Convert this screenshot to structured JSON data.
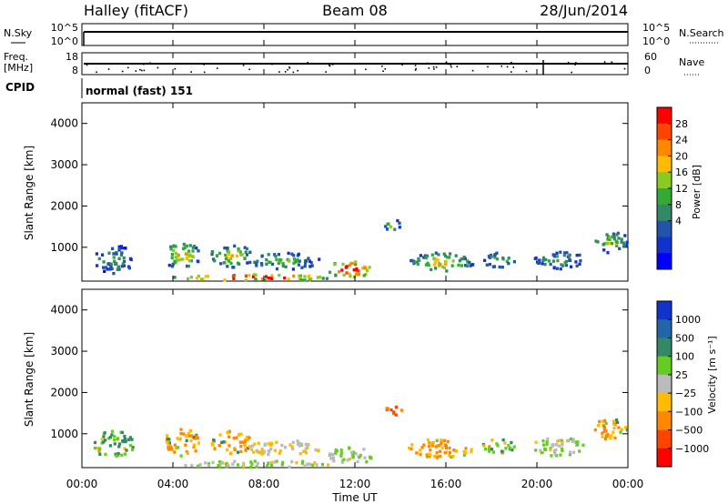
{
  "header": {
    "station": "Halley (fitACF)",
    "beam": "Beam 08",
    "date": "28/Jun/2014"
  },
  "noise_panel": {
    "left_label": "N.Sky",
    "right_label": "N.Search",
    "left_ticks": [
      "10^5",
      "10^0"
    ],
    "right_ticks": [
      "10^5",
      "10^0"
    ]
  },
  "freq_panel": {
    "left_label_line1": "Freq.",
    "left_label_line2": "[MHz]",
    "right_label": "Nave",
    "left_ticks": [
      "18",
      "8"
    ],
    "right_ticks": [
      "60",
      "0"
    ]
  },
  "cpid": {
    "label": "CPID",
    "mode_text": "normal (fast) 151"
  },
  "axes": {
    "ylabel": "Slant Range [km]",
    "xlabel": "Time UT",
    "yticks": [
      "1000",
      "2000",
      "3000",
      "4000"
    ],
    "xticks": [
      "00:00",
      "04:00",
      "08:00",
      "12:00",
      "16:00",
      "20:00",
      "00:00"
    ]
  },
  "power_colorbar": {
    "label": "Power [dB]",
    "ticks": [
      "28",
      "24",
      "20",
      "16",
      "12",
      "8",
      "4"
    ],
    "colors": [
      "#ff0000",
      "#ff4400",
      "#ff8800",
      "#ffbb00",
      "#88cc22",
      "#33aa33",
      "#338866",
      "#2255aa",
      "#1133cc",
      "#0000ff"
    ]
  },
  "velocity_colorbar": {
    "label": "Velocity [m s⁻¹]",
    "ticks": [
      "1000",
      "500",
      "100",
      "25",
      "−25",
      "−100",
      "−500",
      "−1000"
    ],
    "colors": [
      "#1133cc",
      "#2266aa",
      "#338866",
      "#66cc22",
      "#bbbbbb",
      "#ffbb00",
      "#ff8800",
      "#ff4400",
      "#ff0000"
    ]
  },
  "chart_data": {
    "type": "heatmap",
    "title": "Halley (fitACF) Beam 08 28/Jun/2014",
    "xlabel": "Time UT",
    "ylabel": "Slant Range [km]",
    "xlim_hours": [
      0,
      24
    ],
    "ylim_km": [
      180,
      4500
    ],
    "power_range_db": [
      0,
      30
    ],
    "velocity_range_ms": [
      -1000,
      1000
    ],
    "echo_patches": [
      {
        "t0": 0.5,
        "t1": 2.2,
        "r0": 400,
        "r1": 1100,
        "power": 10,
        "velocity": 100
      },
      {
        "t0": 3.6,
        "t1": 5.1,
        "r0": 500,
        "r1": 1150,
        "power": 18,
        "velocity": -100
      },
      {
        "t0": 5.6,
        "t1": 7.4,
        "r0": 550,
        "r1": 1100,
        "power": 16,
        "velocity": -100
      },
      {
        "t0": 7.2,
        "t1": 10.4,
        "r0": 500,
        "r1": 900,
        "power": 12,
        "velocity": -25
      },
      {
        "t0": 4.0,
        "t1": 11.0,
        "r0": 220,
        "r1": 380,
        "power": 26,
        "velocity": 25
      },
      {
        "t0": 10.8,
        "t1": 12.7,
        "r0": 300,
        "r1": 700,
        "power": 28,
        "velocity": 25
      },
      {
        "t0": 13.2,
        "t1": 14.0,
        "r0": 1450,
        "r1": 1700,
        "power": 14,
        "velocity": -500
      },
      {
        "t0": 14.3,
        "t1": 17.2,
        "r0": 450,
        "r1": 900,
        "power": 16,
        "velocity": -100
      },
      {
        "t0": 17.5,
        "t1": 19.0,
        "r0": 550,
        "r1": 900,
        "power": 12,
        "velocity": 100
      },
      {
        "t0": 19.8,
        "t1": 22.0,
        "r0": 500,
        "r1": 950,
        "power": 10,
        "velocity": 25
      },
      {
        "t0": 22.4,
        "t1": 24.0,
        "r0": 900,
        "r1": 1400,
        "power": 14,
        "velocity": -100
      }
    ],
    "noise_sky_log": 4.3,
    "freq_mhz": 12,
    "nave": 18
  }
}
